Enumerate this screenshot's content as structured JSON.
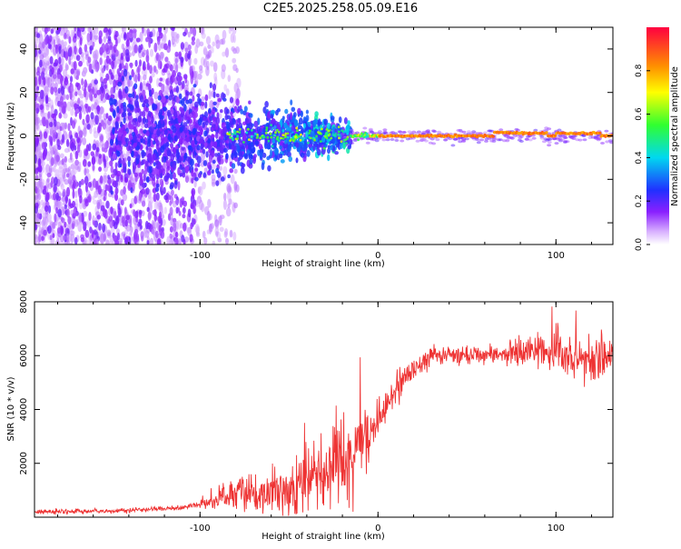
{
  "title": "C2E5.2025.258.05.09.E16",
  "chart_data": [
    {
      "type": "heatmap",
      "title": "C2E5.2025.258.05.09.E16",
      "xlabel": "Height of straight line (km)",
      "ylabel": "Frequency (Hz)",
      "xlim": [
        -193,
        132
      ],
      "ylim": [
        -50,
        50
      ],
      "x_ticks": [
        -100,
        0,
        100
      ],
      "x_tick_labels": [
        "-100",
        "0",
        "100"
      ],
      "y_ticks": [
        -40,
        -20,
        0,
        20,
        40
      ],
      "y_tick_labels": [
        "-40",
        "-20",
        "0",
        "20",
        "40"
      ],
      "colorbar": {
        "label": "Normalized spectral amplitude",
        "range": [
          0,
          1
        ],
        "ticks": [
          0.0,
          0.2,
          0.4,
          0.6,
          0.8
        ],
        "tick_labels": [
          "0.0",
          "0.2",
          "0.4",
          "0.6",
          "0.8"
        ]
      },
      "description": "Broad purple noise at heights below -100 km narrowing to a strong red-orange ridge near 0 Hz from about -15 km to 132 km",
      "ridge": {
        "start_x": -15,
        "end_x": 132,
        "frequency_hz": 0,
        "amplitude": 0.9
      }
    },
    {
      "type": "line",
      "xlabel": "Height of straight line (km)",
      "ylabel": "SNR (10 * v/v)",
      "xlim": [
        -193,
        132
      ],
      "ylim": [
        0,
        8000
      ],
      "x_ticks": [
        -100,
        0,
        100
      ],
      "x_tick_labels": [
        "-100",
        "0",
        "100"
      ],
      "y_ticks": [
        2000,
        4000,
        6000,
        8000
      ],
      "y_tick_labels": [
        "2000",
        "4000",
        "6000",
        "8000"
      ],
      "series": [
        {
          "name": "SNR",
          "color": "#ee3333",
          "trend_x": [
            -193,
            -150,
            -110,
            -95,
            -80,
            -60,
            -45,
            -35,
            -28,
            -22,
            -18,
            -12,
            -5,
            0,
            10,
            20,
            30,
            50,
            80,
            100,
            115,
            125,
            132
          ],
          "trend_y": [
            200,
            220,
            350,
            550,
            900,
            1000,
            1200,
            1300,
            1600,
            2200,
            1800,
            2500,
            3000,
            3600,
            4800,
            5600,
            6000,
            6050,
            6100,
            6200,
            5900,
            5800,
            6000
          ]
        }
      ]
    }
  ],
  "colors": {
    "line": "#ee3333",
    "axis": "#000000"
  }
}
